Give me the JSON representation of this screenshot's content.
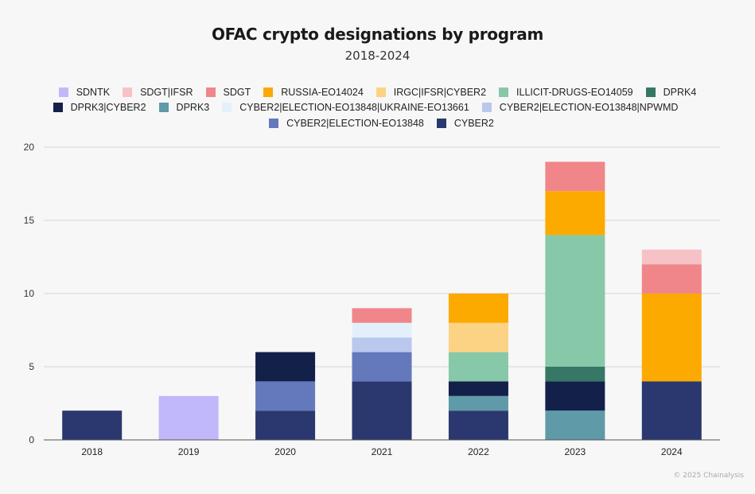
{
  "chart_data": {
    "type": "bar",
    "stacked": true,
    "title": "OFAC crypto designations by program",
    "subtitle": "2018-2024",
    "xlabel": "",
    "ylabel": "",
    "ylim": [
      0,
      20
    ],
    "yticks": [
      0,
      5,
      10,
      15,
      20
    ],
    "grid": true,
    "legend_position": "top",
    "categories": [
      "2018",
      "2019",
      "2020",
      "2021",
      "2022",
      "2023",
      "2024"
    ],
    "series": [
      {
        "name": "CYBER2",
        "color": "#2b386f",
        "values": [
          2,
          0,
          2,
          4,
          2,
          0,
          4
        ]
      },
      {
        "name": "CYBER2|ELECTION-EO13848",
        "color": "#6479bc",
        "values": [
          0,
          0,
          2,
          2,
          0,
          0,
          0
        ]
      },
      {
        "name": "CYBER2|ELECTION-EO13848|NPWMD",
        "color": "#b9c8ec",
        "values": [
          0,
          0,
          0,
          1,
          0,
          0,
          0
        ]
      },
      {
        "name": "CYBER2|ELECTION-EO13848|UKRAINE-EO13661",
        "color": "#e3f0fa",
        "values": [
          0,
          0,
          0,
          1,
          0,
          0,
          0
        ]
      },
      {
        "name": "DPRK3",
        "color": "#5f9aa8",
        "values": [
          0,
          0,
          0,
          0,
          1,
          2,
          0
        ]
      },
      {
        "name": "DPRK3|CYBER2",
        "color": "#13204a",
        "values": [
          0,
          0,
          2,
          0,
          1,
          2,
          0
        ]
      },
      {
        "name": "DPRK4",
        "color": "#377766",
        "values": [
          0,
          0,
          0,
          0,
          0,
          1,
          0
        ]
      },
      {
        "name": "ILLICIT-DRUGS-EO14059",
        "color": "#87c8a8",
        "values": [
          0,
          0,
          0,
          0,
          2,
          9,
          0
        ]
      },
      {
        "name": "IRGC|IFSR|CYBER2",
        "color": "#fcd384",
        "values": [
          0,
          0,
          0,
          0,
          2,
          0,
          0
        ]
      },
      {
        "name": "RUSSIA-EO14024",
        "color": "#fca900",
        "values": [
          0,
          0,
          0,
          0,
          2,
          3,
          6
        ]
      },
      {
        "name": "SDGT",
        "color": "#f0868a",
        "values": [
          0,
          0,
          0,
          1,
          0,
          2,
          2
        ]
      },
      {
        "name": "SDGT|IFSR",
        "color": "#f6c2c5",
        "values": [
          0,
          0,
          0,
          0,
          0,
          0,
          1
        ]
      },
      {
        "name": "SDNTK",
        "color": "#c1b8fa",
        "values": [
          0,
          3,
          0,
          0,
          0,
          0,
          0
        ]
      }
    ],
    "legend_order": [
      [
        "SDNTK",
        "SDGT|IFSR",
        "SDGT",
        "RUSSIA-EO14024",
        "IRGC|IFSR|CYBER2",
        "ILLICIT-DRUGS-EO14059",
        "DPRK4"
      ],
      [
        "DPRK3|CYBER2",
        "DPRK3",
        "CYBER2|ELECTION-EO13848|UKRAINE-EO13661",
        "CYBER2|ELECTION-EO13848|NPWMD"
      ],
      [
        "CYBER2|ELECTION-EO13848",
        "CYBER2"
      ]
    ]
  },
  "credit": "© 2025 Chainalysis"
}
